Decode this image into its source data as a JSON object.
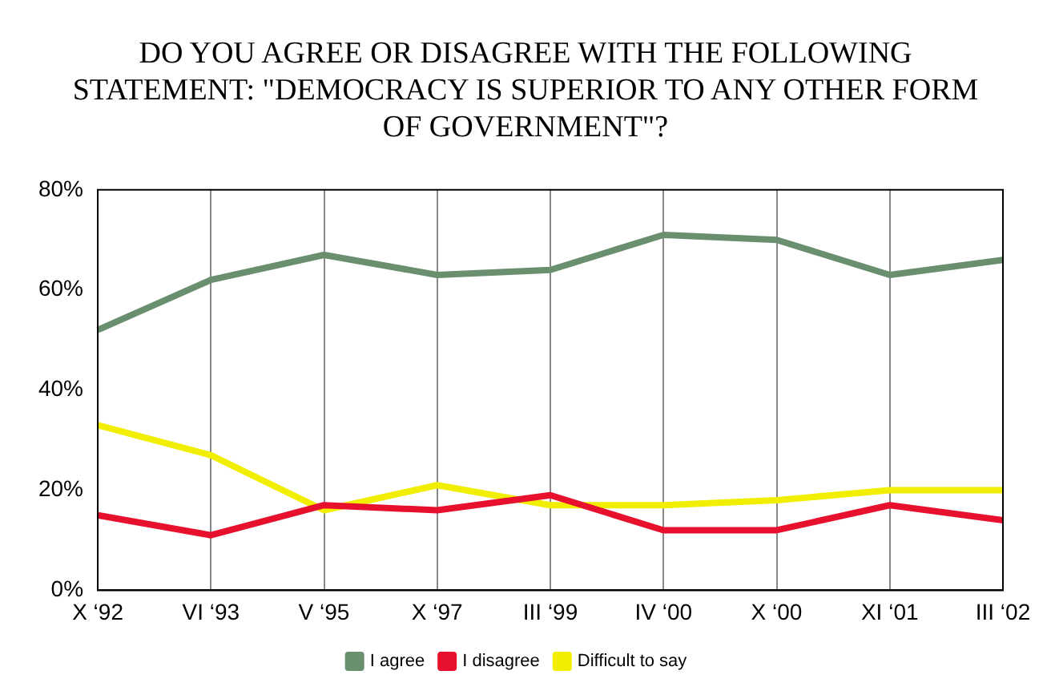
{
  "chart_data": {
    "type": "line",
    "title": "DO YOU AGREE OR DISAGREE WITH THE FOLLOWING STATEMENT: \"DEMOCRACY IS SUPERIOR TO ANY OTHER FORM OF GOVERNMENT\"?",
    "categories": [
      "X ‘92",
      "VI ‘93",
      "V ‘95",
      "X ‘97",
      "III ‘99",
      "IV ‘00",
      "X ‘00",
      "XI ‘01",
      "III ‘02"
    ],
    "series": [
      {
        "name": "I agree",
        "color": "#6a8f6e",
        "values": [
          52,
          62,
          67,
          63,
          64,
          71,
          70,
          63,
          66
        ]
      },
      {
        "name": "I disagree",
        "color": "#e8112d",
        "values": [
          15,
          11,
          17,
          16,
          19,
          12,
          12,
          17,
          14
        ]
      },
      {
        "name": "Difficult to say",
        "color": "#f2ee00",
        "values": [
          33,
          27,
          16,
          21,
          17,
          17,
          18,
          20,
          20
        ]
      }
    ],
    "ylim": [
      0,
      80
    ],
    "yticks": [
      {
        "value": 0,
        "label": "0%"
      },
      {
        "value": 20,
        "label": "20%"
      },
      {
        "value": 40,
        "label": "40%"
      },
      {
        "value": 60,
        "label": "60%"
      },
      {
        "value": 80,
        "label": "80%"
      }
    ],
    "grid": "x",
    "legend": "bottom",
    "marker": "none",
    "line_style": "solid"
  }
}
